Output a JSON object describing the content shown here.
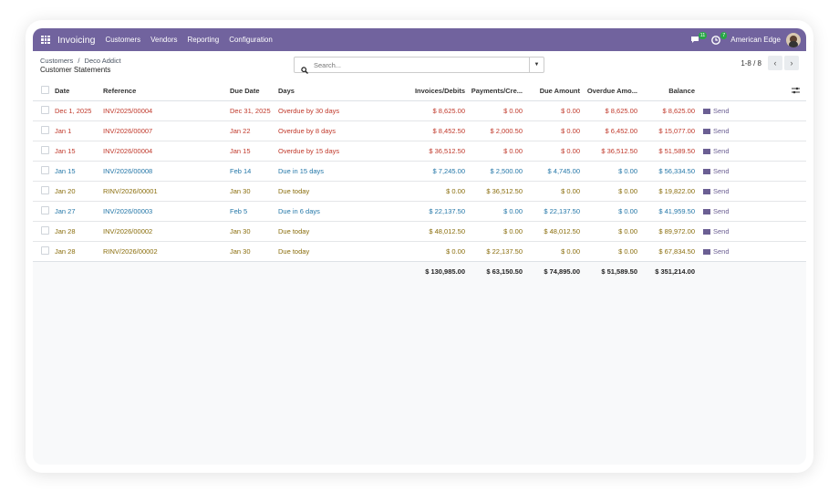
{
  "topbar": {
    "app_title": "Invoicing",
    "menu": [
      "Customers",
      "Vendors",
      "Reporting",
      "Configuration"
    ],
    "chat_badge": "11",
    "activity_badge": "7",
    "company": "American Edge",
    "accent": "#71639e"
  },
  "control": {
    "breadcrumb_parent": "Customers",
    "breadcrumb_sep": "/",
    "breadcrumb_current": "Deco Addict",
    "page_title": "Customer Statements",
    "search_placeholder": "Search...",
    "pager_value": "1-8 / 8"
  },
  "columns": {
    "date": "Date",
    "reference": "Reference",
    "due_date": "Due Date",
    "days": "Days",
    "invoices": "Invoices/Debits",
    "payments": "Payments/Cre...",
    "due_amount": "Due Amount",
    "overdue": "Overdue Amo...",
    "balance": "Balance"
  },
  "rows": [
    {
      "date": "Dec 1, 2025",
      "ref": "INV/2025/00004",
      "due": "Dec 31, 2025",
      "days": "Overdue by 30 days",
      "inv": "$ 8,625.00",
      "pay": "$ 0.00",
      "due_amt": "$ 0.00",
      "over": "$ 8,625.00",
      "bal": "$ 8,625.00",
      "send": "Send",
      "status": "red"
    },
    {
      "date": "Jan 1",
      "ref": "INV/2026/00007",
      "due": "Jan 22",
      "days": "Overdue by 8 days",
      "inv": "$ 8,452.50",
      "pay": "$ 2,000.50",
      "due_amt": "$ 0.00",
      "over": "$ 6,452.00",
      "bal": "$ 15,077.00",
      "send": "Send",
      "status": "red"
    },
    {
      "date": "Jan 15",
      "ref": "INV/2026/00004",
      "due": "Jan 15",
      "days": "Overdue by 15 days",
      "inv": "$ 36,512.50",
      "pay": "$ 0.00",
      "due_amt": "$ 0.00",
      "over": "$ 36,512.50",
      "bal": "$ 51,589.50",
      "send": "Send",
      "status": "red"
    },
    {
      "date": "Jan 15",
      "ref": "INV/2026/00008",
      "due": "Feb 14",
      "days": "Due in 15 days",
      "inv": "$ 7,245.00",
      "pay": "$ 2,500.00",
      "due_amt": "$ 4,745.00",
      "over": "$ 0.00",
      "bal": "$ 56,334.50",
      "send": "Send",
      "status": "blue"
    },
    {
      "date": "Jan 20",
      "ref": "RINV/2026/00001",
      "due": "Jan 30",
      "days": "Due today",
      "inv": "$ 0.00",
      "pay": "$ 36,512.50",
      "due_amt": "$ 0.00",
      "over": "$ 0.00",
      "bal": "$ 19,822.00",
      "send": "Send",
      "status": "gold"
    },
    {
      "date": "Jan 27",
      "ref": "INV/2026/00003",
      "due": "Feb 5",
      "days": "Due in 6 days",
      "inv": "$ 22,137.50",
      "pay": "$ 0.00",
      "due_amt": "$ 22,137.50",
      "over": "$ 0.00",
      "bal": "$ 41,959.50",
      "send": "Send",
      "status": "blue"
    },
    {
      "date": "Jan 28",
      "ref": "INV/2026/00002",
      "due": "Jan 30",
      "days": "Due today",
      "inv": "$ 48,012.50",
      "pay": "$ 0.00",
      "due_amt": "$ 48,012.50",
      "over": "$ 0.00",
      "bal": "$ 89,972.00",
      "send": "Send",
      "status": "gold"
    },
    {
      "date": "Jan 28",
      "ref": "RINV/2026/00002",
      "due": "Jan 30",
      "days": "Due today",
      "inv": "$ 0.00",
      "pay": "$ 22,137.50",
      "due_amt": "$ 0.00",
      "over": "$ 0.00",
      "bal": "$ 67,834.50",
      "send": "Send",
      "status": "gold"
    }
  ],
  "totals": {
    "inv": "$ 130,985.00",
    "pay": "$ 63,150.50",
    "due_amt": "$ 74,895.00",
    "over": "$ 51,589.50",
    "bal": "$ 351,214.00"
  },
  "colors": {
    "overdue": "#c0392b",
    "upcoming": "#2477a8",
    "today": "#8a6d0c"
  }
}
